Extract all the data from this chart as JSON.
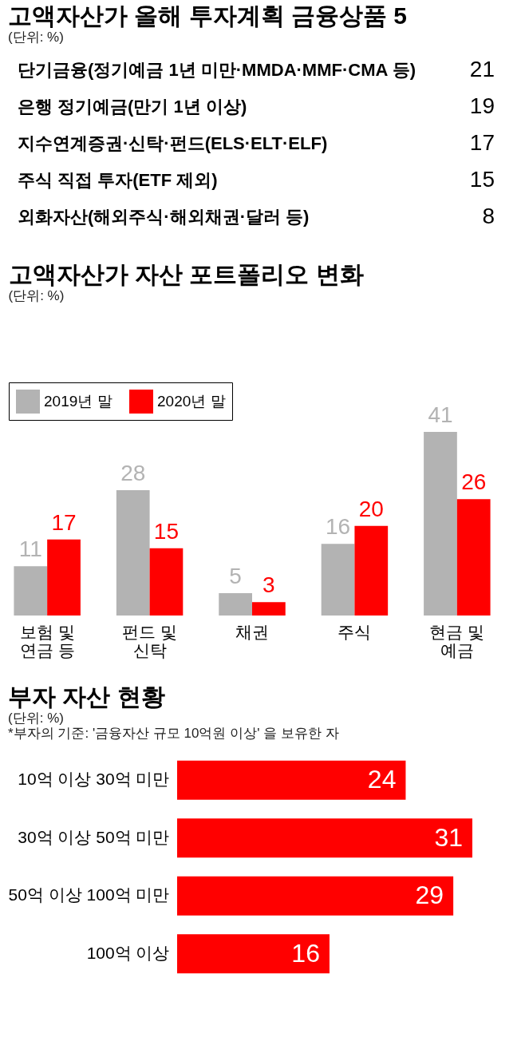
{
  "chart_data": [
    {
      "type": "other",
      "title": "고액자산가 올해 투자계획 금융상품 5",
      "subtitle": "(단위: %)",
      "categories": [
        "단기금융(정기예금 1년 미만·MMDA·MMF·CMA 등)",
        "은행 정기예금(만기 1년 이상)",
        "지수연계증권·신탁·펀드(ELS·ELT·ELF)",
        "주식 직접 투자(ETF 제외)",
        "외화자산(해외주식·해외채권·달러 등)"
      ],
      "values": [
        21,
        19,
        17,
        15,
        8
      ],
      "data_labels": true
    },
    {
      "type": "bar",
      "title": "고액자산가 자산 포트폴리오 변화",
      "subtitle": "(단위: %)",
      "categories": [
        "보험 및\n연금 등",
        "펀드 및\n신탁",
        "채권",
        "주식",
        "현금 및\n예금"
      ],
      "series": [
        {
          "name": "2019년 말",
          "color": "#b3b3b3",
          "values": [
            11,
            28,
            5,
            16,
            41
          ]
        },
        {
          "name": "2020년 말",
          "color": "#ff0000",
          "values": [
            17,
            15,
            3,
            20,
            26
          ]
        }
      ],
      "data_labels": true,
      "legend": "top left"
    },
    {
      "type": "bar",
      "orientation": "horizontal",
      "title": "부자 자산 현황",
      "subtitle": "(단위: %)",
      "annotations": [
        "*부자의 기준: '금융자산 규모 10억원 이상' 을 보유한 자"
      ],
      "categories": [
        "10억 이상 30억 미만",
        "30억 이상 50억 미만",
        "50억 이상 100억 미만",
        "100억 이상"
      ],
      "values": [
        24,
        31,
        29,
        16
      ],
      "color": "#ff0000",
      "data_labels": true
    }
  ]
}
